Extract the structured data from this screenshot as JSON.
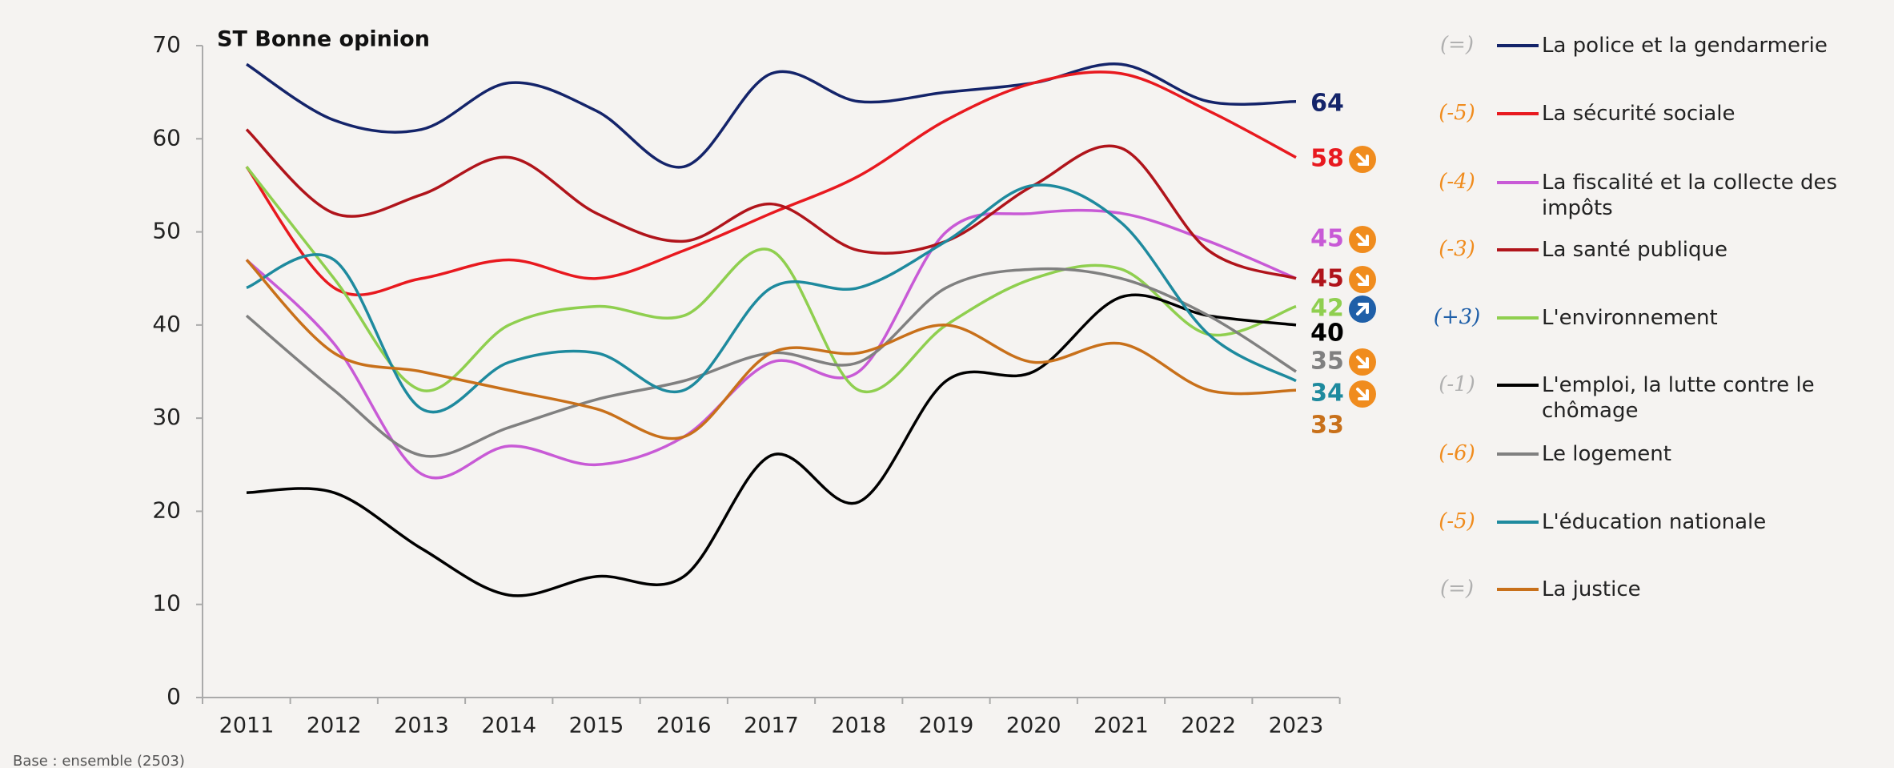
{
  "chart_data": {
    "type": "line",
    "annotation": "ST Bonne opinion",
    "footnote": "Base : ensemble (2503)",
    "categories": [
      "2011",
      "2012",
      "2013",
      "2014",
      "2015",
      "2016",
      "2017",
      "2018",
      "2019",
      "2020",
      "2021",
      "2022",
      "2023"
    ],
    "ylim": [
      0,
      70
    ],
    "yticks": [
      0,
      10,
      20,
      30,
      40,
      50,
      60,
      70
    ],
    "series": [
      {
        "name": "La police et la gendarmerie",
        "color": "#14246a",
        "change": "(=)",
        "change_color": "#b0b0b0",
        "arrow": null,
        "values": [
          68,
          62,
          61,
          66,
          63,
          57,
          67,
          64,
          65,
          66,
          68,
          64,
          64
        ]
      },
      {
        "name": "La sécurité sociale",
        "color": "#e8191f",
        "change": "(-5)",
        "change_color": "#f08c1e",
        "arrow": "down",
        "values": [
          57,
          44,
          45,
          47,
          45,
          48,
          52,
          56,
          62,
          66,
          67,
          63,
          58
        ]
      },
      {
        "name": "La fiscalité et la collecte des impôts",
        "color": "#c85ad6",
        "change": "(-4)",
        "change_color": "#f08c1e",
        "arrow": "down",
        "values": [
          47,
          38,
          24,
          27,
          25,
          28,
          36,
          35,
          50,
          52,
          52,
          49,
          45
        ]
      },
      {
        "name": "La santé publique",
        "color": "#b0141b",
        "change": "(-3)",
        "change_color": "#f08c1e",
        "arrow": "down",
        "values": [
          61,
          52,
          54,
          58,
          52,
          49,
          53,
          48,
          49,
          55,
          59,
          48,
          45
        ]
      },
      {
        "name": "L'environnement",
        "color": "#8fcf4f",
        "change": "(+3)",
        "change_color": "#1f5fa8",
        "arrow": "up",
        "values": [
          57,
          45,
          33,
          40,
          42,
          41,
          48,
          33,
          40,
          45,
          46,
          39,
          42
        ]
      },
      {
        "name": "L'emploi, la lutte contre le chômage",
        "color": "#000000",
        "change": "(-1)",
        "change_color": "#b0b0b0",
        "arrow": null,
        "values": [
          22,
          22,
          16,
          11,
          13,
          13,
          26,
          21,
          34,
          35,
          43,
          41,
          40
        ]
      },
      {
        "name": "Le logement",
        "color": "#808080",
        "change": "(-6)",
        "change_color": "#f08c1e",
        "arrow": "down",
        "values": [
          41,
          33,
          26,
          29,
          32,
          34,
          37,
          36,
          44,
          46,
          45,
          41,
          35
        ]
      },
      {
        "name": "L'éducation nationale",
        "color": "#1e8a9e",
        "change": "(-5)",
        "change_color": "#f08c1e",
        "arrow": "down",
        "values": [
          44,
          47,
          31,
          36,
          37,
          33,
          44,
          44,
          49,
          55,
          51,
          39,
          34
        ]
      },
      {
        "name": "La justice",
        "color": "#c8701a",
        "change": "(=)",
        "change_color": "#b0b0b0",
        "arrow": null,
        "values": [
          47,
          37,
          35,
          33,
          31,
          28,
          37,
          37,
          40,
          36,
          38,
          33,
          33
        ]
      }
    ]
  }
}
